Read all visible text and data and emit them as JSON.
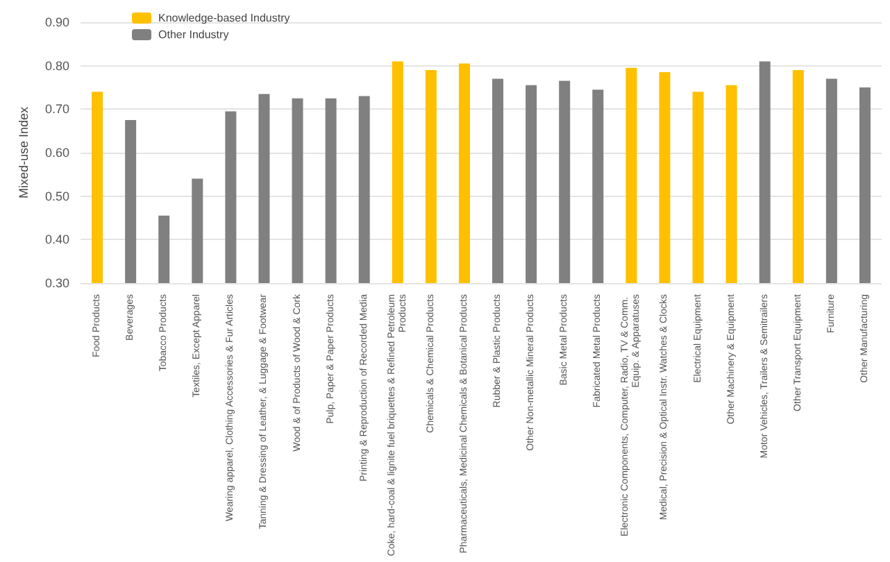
{
  "chart_data": {
    "type": "bar",
    "ylabel": "Mixed-use Index",
    "categories": [
      "Food Products",
      "Beverages",
      "Tobacco Products",
      "Textiles, Except Apparel",
      "Wearing apparel, Clothing Accessories & Fur Articles",
      "Tanning & Dressing of Leather, & Luggage & Footwear",
      "Wood & of Products of Wood & Cork",
      "Pulp, Paper & Paper Products",
      "Printing & Reproduction of Recorded Media",
      "Coke, hard-coal & lignite fuel briquettes & Refined Petroleum Products",
      "Chemicals & Chemical Products",
      "Pharmaceuticals, Medicinal Chemicals & Botanical Products",
      "Rubber & Plastic Products",
      "Other Non-metallic Mineral Products",
      "Basic Metal Products",
      "Fabricated Metal Products",
      "Electronic Components, Computer, Radio, TV & Comm. Equip. & Apparatuses",
      "Medical, Precision & Optical Instr. Watches & Clocks",
      "Electrical Equipment",
      "Other Machinery & Equipment",
      "Motor Vehicles, Trailers & Semitrailers",
      "Other Transport Equipment",
      "Furniture",
      "Other Manufacturing"
    ],
    "series": [
      {
        "name": "Knowledge-based Industry",
        "color": "#ffc000",
        "values": [
          0.74,
          null,
          null,
          null,
          null,
          null,
          null,
          null,
          null,
          0.81,
          0.79,
          0.805,
          null,
          null,
          null,
          null,
          0.795,
          0.785,
          0.74,
          0.755,
          null,
          0.79,
          null,
          null
        ]
      },
      {
        "name": "Other Industry",
        "color": "#808080",
        "values": [
          null,
          0.675,
          0.455,
          0.54,
          0.695,
          0.735,
          0.725,
          0.725,
          0.73,
          null,
          null,
          null,
          0.77,
          0.755,
          0.765,
          0.745,
          null,
          null,
          null,
          null,
          0.81,
          null,
          0.77,
          0.75
        ]
      }
    ],
    "ylim": [
      0.3,
      0.9
    ],
    "yticks": [
      {
        "value": 0.3,
        "label": "0.30"
      },
      {
        "value": 0.4,
        "label": "0.40"
      },
      {
        "value": 0.5,
        "label": "0.50"
      },
      {
        "value": 0.6,
        "label": "0.60"
      },
      {
        "value": 0.7,
        "label": "0.70"
      },
      {
        "value": 0.8,
        "label": "0.80"
      },
      {
        "value": 0.9,
        "label": "0.90"
      }
    ],
    "grid": "y",
    "legend": "top left"
  }
}
